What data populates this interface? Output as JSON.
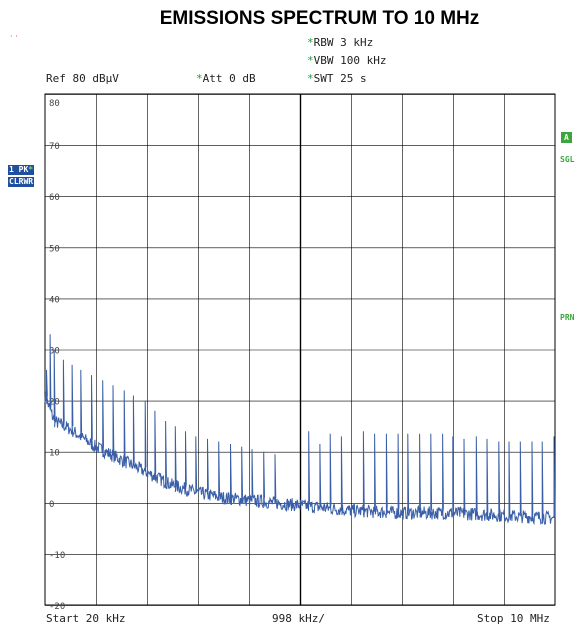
{
  "title": "EMISSIONS SPECTRUM TO 10 MHz",
  "settings": {
    "ref": "Ref  80 dBµV",
    "att": "Att  0 dB",
    "rbw": "RBW 3 kHz",
    "vbw": "VBW 100 kHz",
    "swt": "SWT 25 s",
    "star": "*"
  },
  "side_labels": {
    "trace": "1 PK",
    "trace_star": "*",
    "mode": "CLRWR",
    "box_a": "A",
    "sgl": "SGL",
    "prn": "PRN"
  },
  "footer": {
    "start": "Start 20 kHz",
    "span": "998 kHz/",
    "stop": "Stop 10 MHz"
  },
  "colors": {
    "trace": "#3a5fa8",
    "grid": "#000000",
    "accent_blue": "#1f4f9e",
    "accent_green": "#3ca63c"
  },
  "chart_data": {
    "type": "line",
    "title": "EMISSIONS SPECTRUM TO 10 MHz",
    "xlabel": "",
    "ylabel": "",
    "xlim": [
      0.02,
      10.0
    ],
    "ylim": [
      -20,
      80
    ],
    "x_unit": "MHz",
    "y_unit": "dBµV",
    "yticks": [
      80,
      70,
      60,
      50,
      40,
      30,
      20,
      10,
      0,
      -10,
      -20
    ],
    "x_divisions": 10,
    "grid": true,
    "series": [
      {
        "values_desc": "",
        "floor": [
          [
            0.02,
            21
          ],
          [
            0.2,
            16
          ],
          [
            0.5,
            14.5
          ],
          [
            1.0,
            11
          ],
          [
            1.5,
            8.5
          ],
          [
            2.0,
            6
          ],
          [
            2.5,
            3.5
          ],
          [
            3.0,
            2
          ],
          [
            3.5,
            1
          ],
          [
            4.0,
            0.5
          ],
          [
            5.0,
            -0.5
          ],
          [
            6.0,
            -1.5
          ],
          [
            7.0,
            -2
          ],
          [
            8.0,
            -2
          ],
          [
            9.0,
            -2.5
          ],
          [
            10.0,
            -3
          ]
        ],
        "peaks": [
          [
            0.05,
            26
          ],
          [
            0.12,
            33
          ],
          [
            0.2,
            30
          ],
          [
            0.38,
            28
          ],
          [
            0.55,
            27
          ],
          [
            0.72,
            26
          ],
          [
            0.93,
            25
          ],
          [
            1.15,
            24
          ],
          [
            1.35,
            23
          ],
          [
            1.57,
            22
          ],
          [
            1.75,
            21
          ],
          [
            1.98,
            20
          ],
          [
            2.17,
            18
          ],
          [
            2.38,
            16
          ],
          [
            2.57,
            15
          ],
          [
            2.77,
            14
          ],
          [
            2.97,
            13
          ],
          [
            3.2,
            12.5
          ],
          [
            3.42,
            12
          ],
          [
            3.65,
            11.5
          ],
          [
            3.87,
            11
          ],
          [
            4.07,
            10.5
          ],
          [
            4.3,
            10
          ],
          [
            4.52,
            9.5
          ],
          [
            5.18,
            14
          ],
          [
            5.4,
            11.5
          ],
          [
            5.6,
            13.5
          ],
          [
            5.82,
            13
          ],
          [
            6.25,
            14
          ],
          [
            6.47,
            13.5
          ],
          [
            6.7,
            13.5
          ],
          [
            6.93,
            13.5
          ],
          [
            7.12,
            13.5
          ],
          [
            7.35,
            13.5
          ],
          [
            7.57,
            13.5
          ],
          [
            7.8,
            13.5
          ],
          [
            8.0,
            13
          ],
          [
            8.22,
            12.5
          ],
          [
            8.46,
            13
          ],
          [
            8.67,
            12.5
          ],
          [
            8.9,
            12
          ],
          [
            9.1,
            12
          ],
          [
            9.32,
            12
          ],
          [
            9.55,
            12
          ],
          [
            9.75,
            12
          ],
          [
            9.98,
            13
          ]
        ]
      }
    ]
  }
}
